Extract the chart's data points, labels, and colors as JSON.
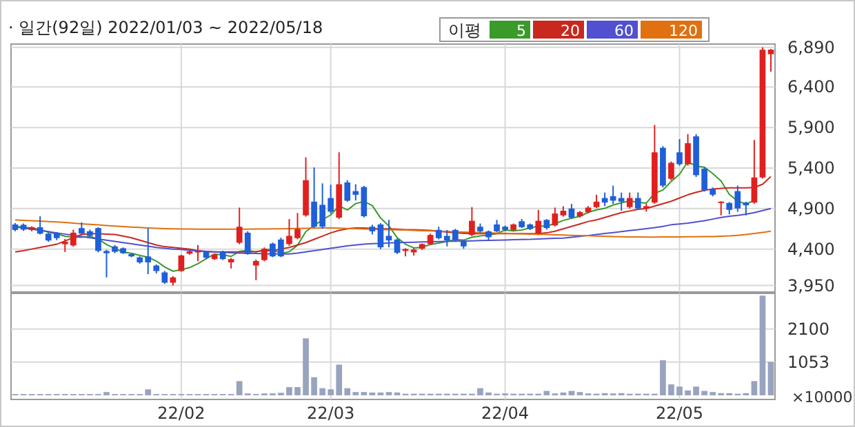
{
  "chart_data": [
    {
      "type": "candlestick",
      "title": "· 일간(92일) 2022/01/03 ~ 2022/05/18",
      "legend_title": "이평",
      "legend": "top",
      "grid": true,
      "ylim": [
        3870,
        6930
      ],
      "yticks": [
        {
          "value": 3950,
          "label": "3,950"
        },
        {
          "value": 4400,
          "label": "4,400"
        },
        {
          "value": 4900,
          "label": "4,900"
        },
        {
          "value": 5400,
          "label": "5,400"
        },
        {
          "value": 5900,
          "label": "5,900"
        },
        {
          "value": 6400,
          "label": "6,400"
        },
        {
          "value": 6890,
          "label": "6,890"
        }
      ],
      "ohlc": [
        [
          4704,
          4720,
          4620,
          4636
        ],
        [
          4700,
          4715,
          4625,
          4640
        ],
        [
          4636,
          4680,
          4620,
          4670
        ],
        [
          4670,
          4805,
          4580,
          4590
        ],
        [
          4590,
          4600,
          4490,
          4506
        ],
        [
          4600,
          4610,
          4510,
          4535
        ],
        [
          4460,
          4525,
          4365,
          4490
        ],
        [
          4445,
          4640,
          4430,
          4602
        ],
        [
          4659,
          4730,
          4580,
          4591
        ],
        [
          4620,
          4640,
          4550,
          4563
        ],
        [
          4659,
          4670,
          4360,
          4377
        ],
        [
          4377,
          4390,
          4050,
          4349
        ],
        [
          4433,
          4450,
          4350,
          4366
        ],
        [
          4410,
          4420,
          4340,
          4349
        ],
        [
          4338,
          4345,
          4300,
          4310
        ],
        [
          4298,
          4310,
          4220,
          4236
        ],
        [
          4309,
          4659,
          4090,
          4236
        ],
        [
          4197,
          4210,
          4100,
          4129
        ],
        [
          4112,
          4130,
          3970,
          3985
        ],
        [
          3985,
          4065,
          3950,
          4050
        ],
        [
          4129,
          4330,
          4120,
          4321
        ],
        [
          4343,
          4400,
          4330,
          4371
        ],
        [
          4360,
          4450,
          4250,
          4375
        ],
        [
          4366,
          4380,
          4280,
          4293
        ],
        [
          4276,
          4345,
          4265,
          4332
        ],
        [
          4366,
          4380,
          4265,
          4276
        ],
        [
          4236,
          4290,
          4160,
          4276
        ],
        [
          4478,
          4912,
          4460,
          4676
        ],
        [
          4602,
          4620,
          4330,
          4338
        ],
        [
          4197,
          4270,
          4017,
          4253
        ],
        [
          4264,
          4420,
          4250,
          4405
        ],
        [
          4467,
          4480,
          4300,
          4310
        ],
        [
          4518,
          4540,
          4300,
          4310
        ],
        [
          4462,
          4770,
          4440,
          4563
        ],
        [
          4535,
          4845,
          4520,
          4647
        ],
        [
          4816,
          5532,
          4800,
          5250
        ],
        [
          4985,
          5408,
          4660,
          4676
        ],
        [
          4946,
          5211,
          4650,
          4676
        ],
        [
          5030,
          5194,
          4840,
          4861
        ],
        [
          4788,
          5594,
          4770,
          5200
        ],
        [
          5222,
          5250,
          4985,
          4997
        ],
        [
          5115,
          5200,
          5000,
          5070
        ],
        [
          5166,
          5180,
          4790,
          4805
        ],
        [
          4676,
          4700,
          4580,
          4619
        ],
        [
          4704,
          4720,
          4400,
          4422
        ],
        [
          4563,
          4760,
          4422,
          4507
        ],
        [
          4518,
          4530,
          4340,
          4354
        ],
        [
          4377,
          4410,
          4310,
          4400
        ],
        [
          4360,
          4410,
          4320,
          4394
        ],
        [
          4405,
          4470,
          4390,
          4462
        ],
        [
          4462,
          4590,
          4450,
          4574
        ],
        [
          4636,
          4676,
          4520,
          4535
        ],
        [
          4563,
          4636,
          4433,
          4507
        ],
        [
          4636,
          4650,
          4490,
          4507
        ],
        [
          4495,
          4510,
          4405,
          4433
        ],
        [
          4574,
          4918,
          4560,
          4749
        ],
        [
          4676,
          4715,
          4600,
          4619
        ],
        [
          4619,
          4630,
          4500,
          4546
        ],
        [
          4704,
          4760,
          4610,
          4619
        ],
        [
          4676,
          4690,
          4620,
          4636
        ],
        [
          4636,
          4715,
          4620,
          4704
        ],
        [
          4743,
          4771,
          4660,
          4670
        ],
        [
          4704,
          4715,
          4635,
          4647
        ],
        [
          4591,
          4884,
          4580,
          4749
        ],
        [
          4760,
          4770,
          4640,
          4659
        ],
        [
          4692,
          4912,
          4680,
          4839
        ],
        [
          4816,
          4929,
          4800,
          4873
        ],
        [
          4901,
          4957,
          4770,
          4788
        ],
        [
          4805,
          4870,
          4790,
          4856
        ],
        [
          4856,
          4930,
          4840,
          4912
        ],
        [
          4918,
          5070,
          4905,
          4985
        ],
        [
          5030,
          5098,
          4930,
          4974
        ],
        [
          5053,
          5183,
          4957,
          4997
        ],
        [
          5030,
          5098,
          4873,
          4985
        ],
        [
          4918,
          5098,
          4900,
          5030
        ],
        [
          5030,
          5098,
          4890,
          4901
        ],
        [
          4901,
          4957,
          4862,
          4929
        ],
        [
          4974,
          5932,
          4960,
          5594
        ],
        [
          5650,
          5670,
          5160,
          5183
        ],
        [
          5267,
          5480,
          5250,
          5464
        ],
        [
          5594,
          5757,
          5430,
          5447
        ],
        [
          5447,
          5819,
          5430,
          5707
        ],
        [
          5791,
          5819,
          5290,
          5312
        ],
        [
          5391,
          5410,
          5110,
          5126
        ],
        [
          5143,
          5160,
          5050,
          5070
        ],
        [
          4969,
          4990,
          4816,
          4985
        ],
        [
          4969,
          4980,
          4828,
          4884
        ],
        [
          5115,
          5183,
          4860,
          4901
        ],
        [
          4974,
          4985,
          4816,
          4940
        ],
        [
          4974,
          5746,
          4960,
          5284
        ],
        [
          5284,
          6890,
          5270,
          6860
        ],
        [
          6805,
          6870,
          6590,
          6861
        ]
      ],
      "series": [
        {
          "type": "line",
          "name": "5",
          "color": "#3a9a2a",
          "values": [
            4680,
            4670,
            4660,
            4640,
            4608,
            4588,
            4558,
            4545,
            4545,
            4556,
            4525,
            4456,
            4409,
            4361,
            4348,
            4322,
            4299,
            4252,
            4179,
            4127,
            4144,
            4171,
            4220,
            4282,
            4338,
            4329,
            4310,
            4371,
            4384,
            4364,
            4390,
            4396,
            4343,
            4368,
            4447,
            4616,
            4689,
            4762,
            4822,
            4933,
            4882,
            4961,
            4987,
            4938,
            4783,
            4685,
            4541,
            4460,
            4415,
            4423,
            4457,
            4473,
            4494,
            4517,
            4511,
            4546,
            4563,
            4571,
            4593,
            4634,
            4625,
            4635,
            4663,
            4682,
            4686,
            4714,
            4753,
            4782,
            4803,
            4854,
            4883,
            4903,
            4943,
            4971,
            4994,
            4978,
            4967,
            5088,
            5129,
            5234,
            5323,
            5479,
            5423,
            5411,
            5332,
            5240,
            5075,
            4993,
            4956,
            4999,
            null,
            null
          ]
        },
        {
          "type": "line",
          "name": "20",
          "color": "#c8281e",
          "values": [
            4366,
            4380,
            4400,
            4420,
            4440,
            4460,
            4500,
            4540,
            4580,
            4591,
            4590,
            4585,
            4580,
            4560,
            4540,
            4510,
            4480,
            4450,
            4430,
            4420,
            4410,
            4400,
            4380,
            4370,
            4366,
            4366,
            4366,
            4366,
            4366,
            4370,
            4380,
            4380,
            4400,
            4420,
            4450,
            4480,
            4520,
            4560,
            4600,
            4630,
            4650,
            4660,
            4660,
            4655,
            4650,
            4650,
            4645,
            4640,
            4640,
            4635,
            4630,
            4620,
            4610,
            4600,
            4595,
            4590,
            4590,
            4590,
            4590,
            4590,
            4590,
            4590,
            4590,
            4591,
            4600,
            4620,
            4650,
            4680,
            4710,
            4740,
            4760,
            4790,
            4820,
            4850,
            4870,
            4890,
            4901,
            4930,
            4960,
            4990,
            5030,
            5070,
            5100,
            5126,
            5140,
            5150,
            5155,
            5155,
            5155,
            5160,
            5200,
            5295
          ]
        },
        {
          "type": "line",
          "name": "60",
          "color": "#5050d0",
          "values": [
            4675,
            4660,
            4645,
            4630,
            4615,
            4600,
            4585,
            4570,
            4555,
            4540,
            4525,
            4510,
            4495,
            4480,
            4465,
            4450,
            4435,
            4420,
            4410,
            4400,
            4394,
            4385,
            4378,
            4372,
            4366,
            4360,
            4355,
            4350,
            4348,
            4345,
            4342,
            4340,
            4340,
            4340,
            4350,
            4365,
            4380,
            4395,
            4410,
            4425,
            4440,
            4450,
            4460,
            4467,
            4470,
            4475,
            4480,
            4482,
            4485,
            4488,
            4490,
            4492,
            4495,
            4497,
            4500,
            4502,
            4505,
            4507,
            4510,
            4512,
            4515,
            4518,
            4520,
            4525,
            4528,
            4532,
            4535,
            4545,
            4556,
            4568,
            4580,
            4592,
            4604,
            4616,
            4628,
            4640,
            4652,
            4664,
            4680,
            4700,
            4710,
            4720,
            4735,
            4750,
            4770,
            4790,
            4805,
            4816,
            4830,
            4850,
            4875,
            4900
          ]
        },
        {
          "type": "line",
          "name": "120",
          "color": "#e07010",
          "values": [
            4760,
            4755,
            4750,
            4745,
            4740,
            4735,
            4728,
            4720,
            4712,
            4705,
            4698,
            4690,
            4684,
            4678,
            4672,
            4666,
            4660,
            4656,
            4652,
            4650,
            4648,
            4647,
            4646,
            4645,
            4645,
            4645,
            4645,
            4645,
            4646,
            4647,
            4648,
            4650,
            4650,
            4652,
            4654,
            4656,
            4658,
            4660,
            4660,
            4658,
            4655,
            4652,
            4648,
            4645,
            4642,
            4640,
            4637,
            4634,
            4630,
            4627,
            4624,
            4620,
            4617,
            4614,
            4610,
            4607,
            4604,
            4600,
            4597,
            4594,
            4591,
            4588,
            4585,
            4582,
            4579,
            4576,
            4573,
            4570,
            4567,
            4564,
            4561,
            4558,
            4555,
            4552,
            4550,
            4549,
            4548,
            4548,
            4549,
            4550,
            4551,
            4552,
            4553,
            4554,
            4555,
            4558,
            4562,
            4570,
            4580,
            4592,
            4605,
            4620
          ]
        }
      ]
    },
    {
      "type": "bar",
      "color": "#98a3bf",
      "grid": true,
      "ylabel": "×10000",
      "categories": [
        null,
        null,
        null,
        null,
        null,
        null,
        null,
        null,
        null,
        null,
        null,
        null,
        null,
        null,
        null,
        null,
        null,
        null,
        null,
        null,
        "22/02",
        null,
        null,
        null,
        null,
        null,
        null,
        null,
        null,
        null,
        null,
        null,
        null,
        null,
        null,
        null,
        null,
        null,
        "22/03",
        null,
        null,
        null,
        null,
        null,
        null,
        null,
        null,
        null,
        null,
        null,
        null,
        null,
        null,
        null,
        null,
        null,
        null,
        null,
        null,
        "22/04",
        null,
        null,
        null,
        null,
        null,
        null,
        null,
        null,
        null,
        null,
        null,
        null,
        null,
        null,
        null,
        null,
        null,
        null,
        null,
        null,
        "22/05",
        null,
        null,
        null,
        null,
        null,
        null,
        null,
        null,
        null,
        null,
        null
      ],
      "ylim": [
        0,
        3230
      ],
      "yticks": [
        1053,
        2100
      ],
      "values": [
        40,
        40,
        40,
        40,
        40,
        40,
        40,
        40,
        40,
        40,
        40,
        104,
        40,
        40,
        40,
        40,
        190,
        40,
        40,
        40,
        40,
        40,
        40,
        40,
        40,
        40,
        40,
        450,
        60,
        40,
        60,
        60,
        80,
        260,
        260,
        1805,
        573,
        226,
        190,
        972,
        226,
        104,
        104,
        90,
        90,
        104,
        90,
        50,
        50,
        50,
        50,
        50,
        50,
        50,
        50,
        50,
        226,
        90,
        50,
        60,
        50,
        50,
        50,
        50,
        139,
        60,
        90,
        139,
        104,
        60,
        50,
        70,
        60,
        70,
        50,
        50,
        50,
        50,
        1111,
        347,
        278,
        156,
        278,
        139,
        104,
        70,
        70,
        50,
        70,
        451,
        3160,
        1059
      ]
    }
  ]
}
